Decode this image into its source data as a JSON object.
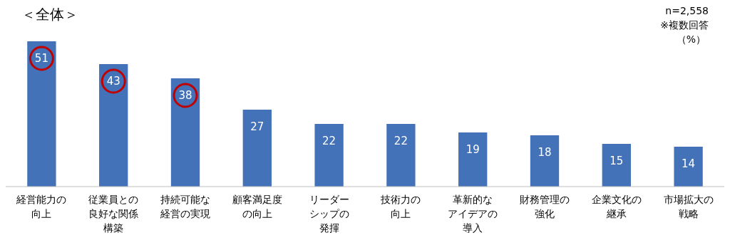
{
  "chart_data": {
    "type": "bar",
    "title": "＜全体＞",
    "categories": [
      "経営能力の向上",
      "従業員との良好な関係構築",
      "持続可能な経営の実現",
      "顧客満足度の向上",
      "リーダーシップの発揮",
      "技術力の向上",
      "革新的なアイデアの導入",
      "財務管理の強化",
      "企業文化の継承",
      "市場拡大の戦略"
    ],
    "values": [
      51,
      43,
      38,
      27,
      22,
      22,
      19,
      18,
      15,
      14
    ],
    "color": "#4472b8",
    "data_labels": true,
    "annotations": [
      "n=2,558",
      "※複数回答",
      "（%）"
    ]
  }
}
